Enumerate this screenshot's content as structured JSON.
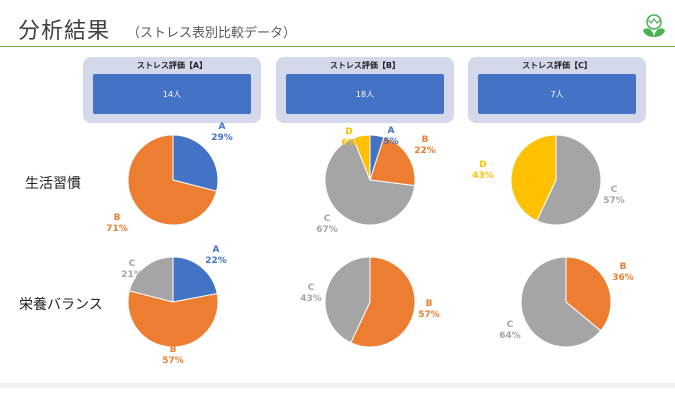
{
  "header": {
    "title": "分析結果",
    "subtitle": "（ストレス表別比較データ）"
  },
  "colors": {
    "A": "#4472c4",
    "B": "#ed7d31",
    "C": "#a5a5a5",
    "D": "#ffc000",
    "rule": "#7cb342",
    "logo": "#4caf50"
  },
  "groups": [
    {
      "label": "ストレス評価【A】",
      "count": "14人"
    },
    {
      "label": "ストレス評価【B】",
      "count": "18人"
    },
    {
      "label": "ストレス評価【C】",
      "count": "7人"
    }
  ],
  "rows": [
    {
      "label": "生活習慣"
    },
    {
      "label": "栄養バランス"
    }
  ],
  "chart_data": [
    {
      "type": "pie",
      "row": "生活習慣",
      "group": "ストレス評価【A】",
      "slices": [
        {
          "label": "A",
          "value": 29,
          "text": "29%"
        },
        {
          "label": "B",
          "value": 71,
          "text": "71%"
        }
      ]
    },
    {
      "type": "pie",
      "row": "生活習慣",
      "group": "ストレス評価【B】",
      "slices": [
        {
          "label": "A",
          "value": 5,
          "text": "5%"
        },
        {
          "label": "B",
          "value": 22,
          "text": "22%"
        },
        {
          "label": "C",
          "value": 67,
          "text": "67%"
        },
        {
          "label": "D",
          "value": 6,
          "text": "6%"
        }
      ]
    },
    {
      "type": "pie",
      "row": "生活習慣",
      "group": "ストレス評価【C】",
      "slices": [
        {
          "label": "C",
          "value": 57,
          "text": "57%"
        },
        {
          "label": "D",
          "value": 43,
          "text": "43%"
        }
      ]
    },
    {
      "type": "pie",
      "row": "栄養バランス",
      "group": "ストレス評価【A】",
      "slices": [
        {
          "label": "A",
          "value": 22,
          "text": "22%"
        },
        {
          "label": "B",
          "value": 57,
          "text": "57%"
        },
        {
          "label": "C",
          "value": 21,
          "text": "21%"
        }
      ]
    },
    {
      "type": "pie",
      "row": "栄養バランス",
      "group": "ストレス評価【B】",
      "slices": [
        {
          "label": "B",
          "value": 57,
          "text": "57%"
        },
        {
          "label": "C",
          "value": 43,
          "text": "43%"
        }
      ]
    },
    {
      "type": "pie",
      "row": "栄養バランス",
      "group": "ストレス評価【C】",
      "slices": [
        {
          "label": "B",
          "value": 36,
          "text": "36%"
        },
        {
          "label": "C",
          "value": 64,
          "text": "64%"
        }
      ]
    }
  ]
}
